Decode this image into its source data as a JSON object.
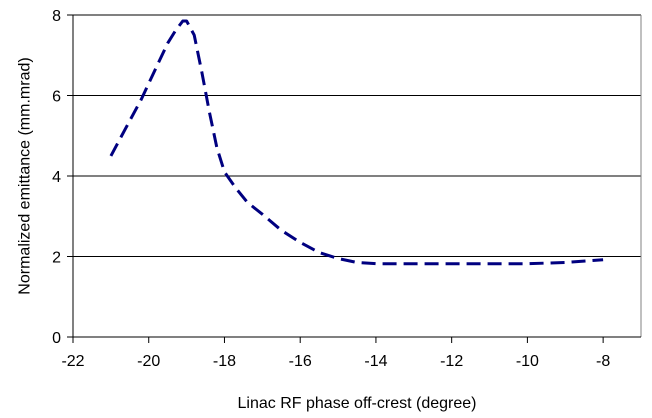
{
  "chart_data": {
    "type": "line",
    "title": "",
    "xlabel": "Linac RF phase off-crest (degree)",
    "ylabel": "Normalized emittance (mm.mrad)",
    "xlim": [
      -22,
      -7
    ],
    "ylim": [
      0,
      8
    ],
    "x_ticks": [
      -22,
      -20,
      -18,
      -16,
      -14,
      -12,
      -10,
      -8
    ],
    "y_ticks": [
      0,
      2,
      4,
      6,
      8
    ],
    "grid": {
      "horizontal": true,
      "vertical": false
    },
    "legend": "none",
    "series": [
      {
        "color": "#000080",
        "line_style": "dashed",
        "points": [
          [
            -21.0,
            4.5
          ],
          [
            -20.6,
            5.2
          ],
          [
            -20.2,
            5.9
          ],
          [
            -19.8,
            6.7
          ],
          [
            -19.5,
            7.3
          ],
          [
            -19.3,
            7.6
          ],
          [
            -19.1,
            7.85
          ],
          [
            -19.0,
            7.85
          ],
          [
            -18.8,
            7.5
          ],
          [
            -18.6,
            6.6
          ],
          [
            -18.4,
            5.6
          ],
          [
            -18.2,
            4.7
          ],
          [
            -18.0,
            4.1
          ],
          [
            -17.7,
            3.7
          ],
          [
            -17.4,
            3.35
          ],
          [
            -17.0,
            3.05
          ],
          [
            -16.5,
            2.65
          ],
          [
            -16.0,
            2.35
          ],
          [
            -15.5,
            2.1
          ],
          [
            -15.0,
            1.95
          ],
          [
            -14.5,
            1.85
          ],
          [
            -14.0,
            1.82
          ],
          [
            -13.0,
            1.82
          ],
          [
            -12.0,
            1.82
          ],
          [
            -11.0,
            1.82
          ],
          [
            -10.0,
            1.82
          ],
          [
            -9.0,
            1.85
          ],
          [
            -8.0,
            1.92
          ]
        ]
      }
    ]
  }
}
